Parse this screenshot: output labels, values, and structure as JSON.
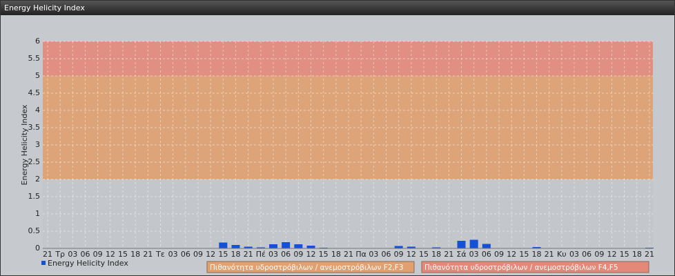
{
  "chart_data": {
    "type": "bar",
    "title": "Energy Helicity Index",
    "y_label": "Energy Helicity Index",
    "categories": [
      "21",
      "Τρ",
      "03",
      "06",
      "09",
      "12",
      "15",
      "18",
      "21",
      "Τε",
      "03",
      "06",
      "09",
      "12",
      "15",
      "18",
      "21",
      "Πέ",
      "03",
      "06",
      "09",
      "12",
      "15",
      "18",
      "21",
      "Πα",
      "03",
      "06",
      "09",
      "12",
      "15",
      "18",
      "21",
      "Σά",
      "03",
      "06",
      "09",
      "12",
      "15",
      "18",
      "21",
      "Κυ",
      "03",
      "06",
      "09",
      "12",
      "15",
      "18",
      "21"
    ],
    "series": [
      {
        "name": "Energy Helicity Index",
        "color": "#1450d8",
        "values": [
          0.01,
          0.01,
          0.01,
          0.01,
          0.01,
          0.01,
          0.01,
          0.01,
          0.01,
          0.01,
          0.01,
          0.01,
          0.01,
          0.01,
          0.17,
          0.1,
          0.05,
          0.03,
          0.12,
          0.18,
          0.12,
          0.08,
          0.02,
          0.01,
          0.01,
          0.01,
          0.01,
          0.01,
          0.07,
          0.05,
          0.01,
          0.03,
          0.01,
          0.22,
          0.25,
          0.13,
          0.01,
          0.01,
          0.01,
          0.04,
          0.01,
          0.01,
          0.01,
          0.01,
          0.01,
          0.01,
          0.01,
          0.01,
          0.02
        ]
      }
    ],
    "bands": [
      {
        "from": 2,
        "to": 5,
        "color": "#e0a070",
        "label": "Πιθανότητα υδροστρόβιλων / ανεμοστρόβιλων F2,F3"
      },
      {
        "from": 5,
        "to": 6,
        "color": "#e4887a",
        "label": "Πιθανότητα υδροστρόβιλων / ανεμοστρόβιλων F4,F5"
      }
    ],
    "ylim": [
      0,
      6
    ],
    "yticks": [
      0,
      0.5,
      1,
      1.5,
      2,
      2.5,
      3,
      3.5,
      4,
      4.5,
      5,
      5.5,
      6
    ],
    "grid": true
  }
}
